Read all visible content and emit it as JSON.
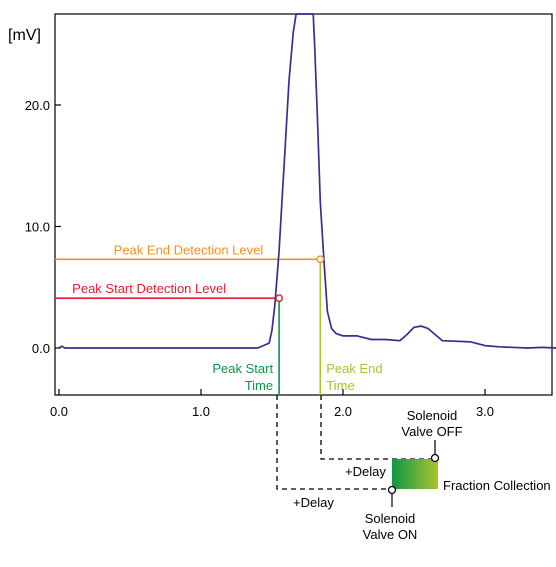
{
  "chart_data": {
    "type": "line",
    "ylabel": "[mV]",
    "xlim": [
      0.0,
      3.5
    ],
    "ylim": [
      -2.0,
      28.0
    ],
    "x_ticks": [
      "0.0",
      "1.0",
      "2.0",
      "3.0"
    ],
    "y_ticks": [
      "0.0",
      "10.0",
      "20.0"
    ],
    "grid": false,
    "series": [
      {
        "color": "#3b2d8f",
        "x": [
          0.0,
          0.02,
          0.04,
          1.0,
          1.4,
          1.48,
          1.5,
          1.52,
          1.55,
          1.57,
          1.59,
          1.6,
          1.62,
          1.65,
          1.67,
          1.7,
          1.79,
          1.8,
          1.82,
          1.84,
          1.87,
          1.89,
          1.92,
          1.95,
          2.0,
          2.1,
          2.2,
          2.3,
          2.4,
          2.45,
          2.5,
          2.55,
          2.6,
          2.65,
          2.7,
          2.9,
          3.0,
          3.1,
          3.3,
          3.4,
          3.5
        ],
        "y": [
          0.0,
          0.15,
          0.0,
          0.0,
          0.0,
          0.4,
          1.5,
          3.5,
          8.0,
          12.0,
          16.0,
          18.0,
          22.0,
          26.0,
          28.0,
          28.0,
          28.0,
          25.0,
          19.0,
          12.0,
          6.5,
          3.0,
          1.6,
          1.2,
          1.0,
          1.0,
          0.7,
          0.7,
          0.6,
          1.1,
          1.7,
          1.8,
          1.6,
          1.1,
          0.6,
          0.5,
          0.2,
          0.1,
          0.0,
          0.05,
          0.0
        ]
      }
    ],
    "annotations": {
      "peak_start_level": {
        "label": "Peak Start Detection Level",
        "y": 4.1,
        "x_end": 1.55,
        "color": "#e0202e"
      },
      "peak_end_level": {
        "label": "Peak End Detection Level",
        "y": 7.3,
        "x_end": 1.84,
        "color": "#f0921e"
      },
      "peak_start_time": {
        "label_line1": "Peak Start",
        "label_line2": "Time",
        "x": 1.55,
        "color": "#0f9648"
      },
      "peak_end_time": {
        "label_line1": "Peak End",
        "label_line2": "Time",
        "x": 1.84,
        "color": "#a9c52d"
      },
      "delay_top": "+Delay",
      "delay_bottom": "+Delay",
      "valve_off_line1": "Solenoid",
      "valve_off_line2": "Valve OFF",
      "valve_on_line1": "Solenoid",
      "valve_on_line2": "Valve ON",
      "fraction_collection": "Fraction Collection",
      "fraction_gradient_start": "#0f9648",
      "fraction_gradient_end": "#a9c52d"
    }
  }
}
